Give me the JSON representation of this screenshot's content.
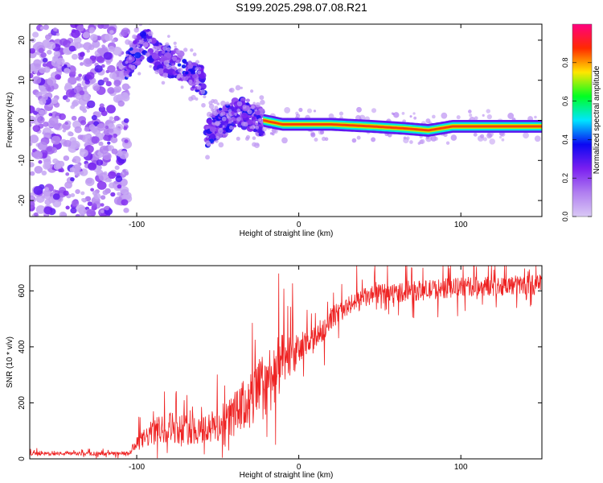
{
  "title": "S199.2025.298.07.08.R21",
  "chart_data": [
    {
      "type": "heatmap",
      "xlabel": "Height of straight line (km)",
      "ylabel": "Frequency (Hz)",
      "xlim": [
        -166,
        150
      ],
      "ylim": [
        -24,
        24
      ],
      "x_ticks": [
        -100,
        0,
        100
      ],
      "y_ticks": [
        -20,
        -10,
        0,
        10,
        20
      ],
      "x_tick_labels": [
        "-100",
        "0",
        "100"
      ],
      "y_tick_labels": [
        "-20",
        "-10",
        "0",
        "10",
        "20"
      ],
      "colorbar": {
        "label": "Normalized spectral amplitude",
        "range": [
          0,
          1
        ],
        "ticks": [
          0.0,
          0.2,
          0.4,
          0.6,
          0.8
        ],
        "tick_labels": [
          "0.0",
          "0.2",
          "0.4",
          "0.6",
          "0.8"
        ],
        "stops": [
          "#d9c9f5",
          "#b07ef0",
          "#7a1ff0",
          "#0b08f2",
          "#00e5ff",
          "#00ff22",
          "#ffe600",
          "#ff2a00",
          "#ff0080"
        ]
      },
      "features": [
        {
          "name": "noise-field",
          "x_range": [
            -166,
            -105
          ],
          "freq_range": [
            -24,
            24
          ],
          "amplitude": [
            0.05,
            0.3
          ]
        },
        {
          "name": "upper-trace",
          "points": [
            [
              -107,
              13
            ],
            [
              -100,
              17
            ],
            [
              -93,
              19
            ],
            [
              -85,
              15
            ],
            [
              -75,
              14
            ],
            [
              -66,
              11
            ],
            [
              -58,
              10
            ]
          ],
          "amplitude": 0.3
        },
        {
          "name": "middle-trace",
          "points": [
            [
              -57,
              -3
            ],
            [
              -50,
              -1
            ],
            [
              -42,
              1
            ],
            [
              -35,
              2
            ],
            [
              -28,
              1
            ],
            [
              -22,
              -1
            ]
          ],
          "amplitude": 0.3
        },
        {
          "name": "main-trace",
          "points": [
            [
              -22,
              0
            ],
            [
              -10,
              -1
            ],
            [
              0,
              -1
            ],
            [
              20,
              -1
            ],
            [
              45,
              -1.5
            ],
            [
              65,
              -2
            ],
            [
              80,
              -2.5
            ],
            [
              95,
              -1.5
            ],
            [
              110,
              -1.5
            ],
            [
              150,
              -1.5
            ]
          ],
          "amplitude": 0.85
        }
      ]
    },
    {
      "type": "line",
      "xlabel": "Height of straight line (km)",
      "ylabel": "SNR (10 * v/v)",
      "xlim": [
        -166,
        150
      ],
      "ylim": [
        0,
        690
      ],
      "x_ticks": [
        -100,
        0,
        100
      ],
      "y_ticks": [
        0,
        200,
        400,
        600
      ],
      "x_tick_labels": [
        "-100",
        "0",
        "100"
      ],
      "y_tick_labels": [
        "0",
        "200",
        "400",
        "600"
      ],
      "color": "#ee2222",
      "series": [
        {
          "name": "SNR",
          "x": [
            -166,
            -140,
            -120,
            -105,
            -100,
            -90,
            -80,
            -70,
            -60,
            -50,
            -40,
            -30,
            -20,
            -15,
            -10,
            -5,
            0,
            10,
            20,
            30,
            40,
            50,
            60,
            70,
            80,
            90,
            100,
            110,
            120,
            130,
            140,
            150
          ],
          "values": [
            18,
            18,
            18,
            18,
            50,
            90,
            110,
            100,
            100,
            110,
            150,
            200,
            260,
            300,
            330,
            360,
            380,
            420,
            500,
            540,
            570,
            585,
            590,
            595,
            600,
            605,
            610,
            612,
            614,
            616,
            618,
            620
          ],
          "noise_amplitude": [
            8,
            8,
            8,
            10,
            30,
            60,
            70,
            70,
            70,
            80,
            100,
            130,
            160,
            150,
            130,
            100,
            70,
            60,
            50,
            45,
            45,
            45,
            45,
            45,
            45,
            45,
            45,
            45,
            45,
            45,
            45,
            45
          ]
        }
      ]
    }
  ]
}
